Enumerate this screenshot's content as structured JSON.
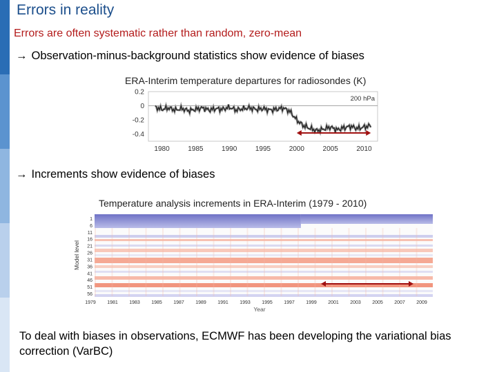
{
  "slide": {
    "title": "Errors in reality",
    "subtitle": "Errors are often systematic rather than random, zero-mean",
    "bullet1": "Observation-minus-background statistics show evidence of biases",
    "bullet2": "Increments show evidence of biases",
    "arrow_glyph": "→",
    "conclusion": "To deal with biases in observations, ECMWF has been developing the variational bias correction (VarBC)"
  },
  "colors": {
    "title": "#1c4f8c",
    "subtitle": "#b31b1b",
    "sidebar": [
      "#2a6db5",
      "#5b93cf",
      "#8fb6e0",
      "#b9d0ec",
      "#d9e6f5"
    ],
    "arrow_marker": "#a01010"
  },
  "chart_data": [
    {
      "type": "line",
      "title": "ERA-Interim temperature departures for radiosondes (K)",
      "annotation": "200 hPa",
      "x_ticks": [
        "1980",
        "1985",
        "1990",
        "1995",
        "2000",
        "2005",
        "2010"
      ],
      "y_ticks": [
        "0.2",
        "0",
        "-0.2",
        "-0.4"
      ],
      "xlim": [
        1978,
        2012
      ],
      "ylim": [
        -0.5,
        0.2
      ],
      "series": [
        {
          "x": [
            1979,
            1980,
            1981,
            1982,
            1983,
            1984,
            1985,
            1986,
            1987,
            1988,
            1989,
            1990,
            1991,
            1992,
            1993,
            1994,
            1995,
            1996,
            1997,
            1998,
            1999,
            2000,
            2001,
            2002,
            2003,
            2004,
            2005,
            2006,
            2007,
            2008,
            2009,
            2010,
            2011
          ],
          "y": [
            -0.02,
            -0.05,
            -0.03,
            -0.06,
            -0.04,
            -0.07,
            -0.05,
            -0.03,
            -0.06,
            -0.04,
            -0.05,
            -0.02,
            -0.06,
            -0.04,
            -0.03,
            -0.05,
            -0.04,
            -0.06,
            -0.05,
            -0.03,
            -0.08,
            -0.2,
            -0.28,
            -0.32,
            -0.35,
            -0.33,
            -0.3,
            -0.34,
            -0.31,
            -0.29,
            -0.32,
            -0.3,
            -0.28
          ]
        }
      ],
      "highlight_range": [
        2000,
        2011
      ]
    },
    {
      "type": "heatmap",
      "title": "Temperature analysis increments in ERA-Interim (1979 - 2010)",
      "ylabel": "Model level",
      "xlabel": "Year",
      "y_ticks": [
        "1",
        "6",
        "11",
        "16",
        "21",
        "26",
        "31",
        "36",
        "41",
        "46",
        "51",
        "56"
      ],
      "x_ticks": [
        "1979",
        "1981",
        "1983",
        "1985",
        "1987",
        "1989",
        "1991",
        "1993",
        "1995",
        "1997",
        "1999",
        "2001",
        "2003",
        "2005",
        "2007",
        "2009"
      ],
      "highlight_range": [
        2000,
        2009
      ]
    }
  ]
}
